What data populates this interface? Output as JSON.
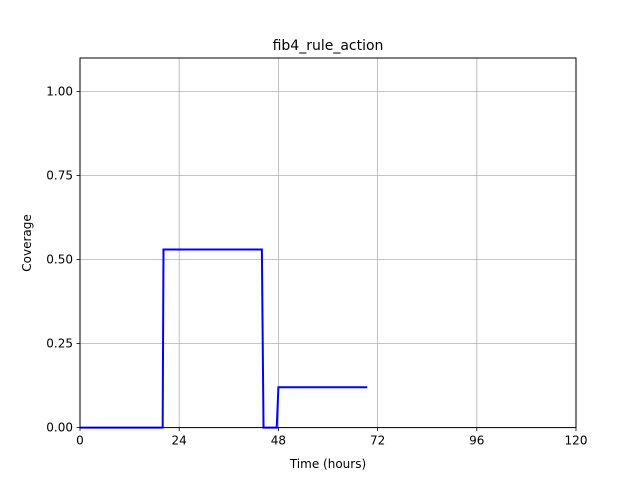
{
  "chart_data": {
    "type": "line",
    "title": "fib4_rule_action",
    "xlabel": "Time (hours)",
    "ylabel": "Coverage",
    "xlim": [
      0,
      120
    ],
    "ylim": [
      0,
      1.1
    ],
    "xticks": [
      0,
      24,
      48,
      72,
      96,
      120
    ],
    "xtick_labels": [
      "0",
      "24",
      "48",
      "72",
      "96",
      "120"
    ],
    "yticks": [
      0,
      0.25,
      0.5,
      0.75,
      1.0
    ],
    "ytick_labels": [
      "0.00",
      "0.25",
      "0.50",
      "0.75",
      "1.00"
    ],
    "grid": true,
    "series": [
      {
        "color": "#0000ff",
        "x": [
          0,
          20,
          20.2,
          44,
          44.4,
          47.6,
          48,
          69.5
        ],
        "y": [
          0,
          0,
          0.53,
          0.53,
          0,
          0,
          0.12,
          0.12
        ]
      }
    ]
  }
}
